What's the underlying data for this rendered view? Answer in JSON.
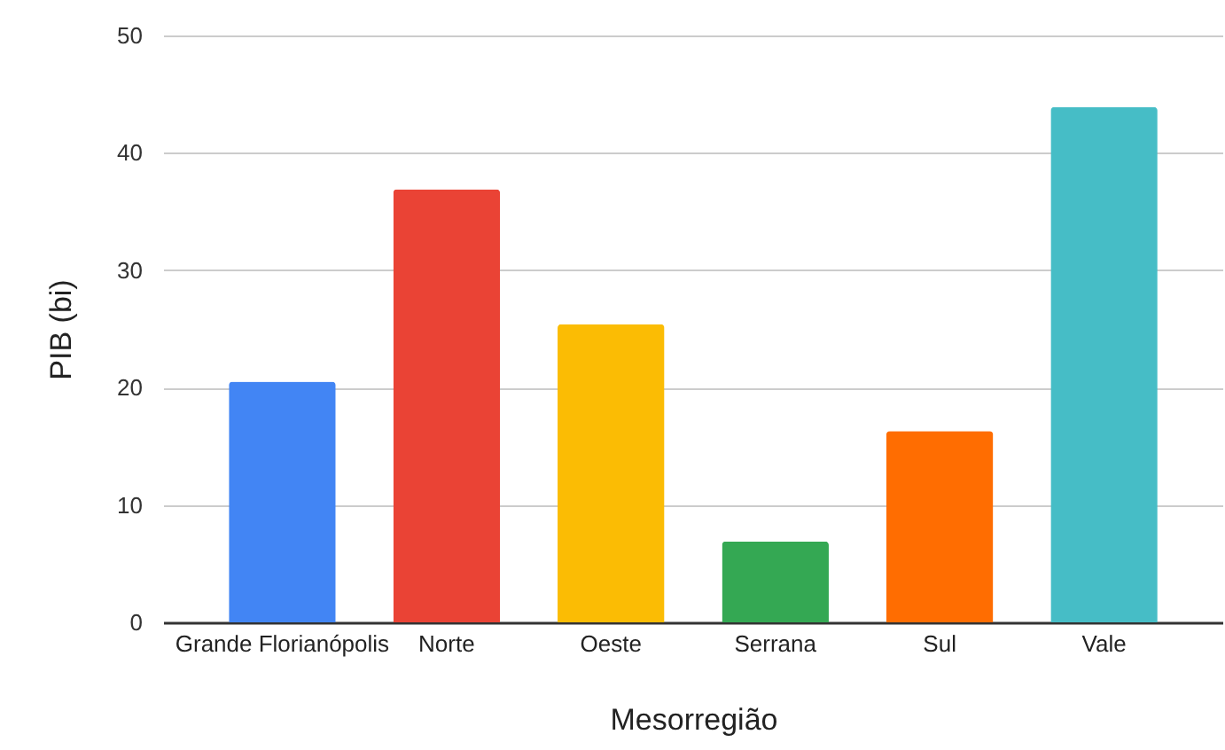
{
  "chart_data": {
    "type": "bar",
    "xlabel": "Mesorregião",
    "ylabel": "PIB (bi)",
    "categories": [
      "Grande Florianópolis",
      "Norte",
      "Oeste",
      "Serrana",
      "Sul",
      "Vale"
    ],
    "values": [
      20.5,
      36.9,
      25.4,
      6.9,
      16.3,
      43.9
    ],
    "colors": [
      "#4285f4",
      "#ea4335",
      "#fbbc04",
      "#34a853",
      "#ff6d01",
      "#46bdc6"
    ],
    "ylim": [
      0,
      50
    ],
    "yticks": [
      0,
      10,
      20,
      30,
      40,
      50
    ],
    "grid": "y"
  }
}
